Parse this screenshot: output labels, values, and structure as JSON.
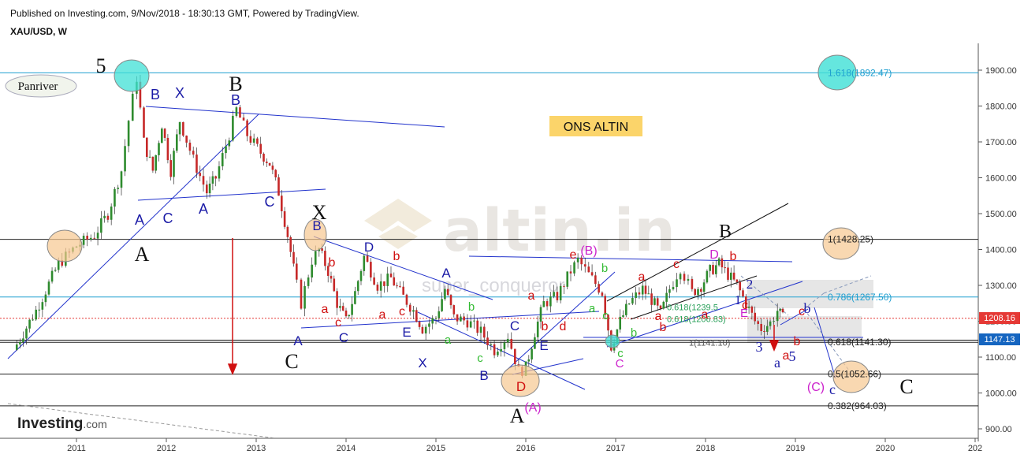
{
  "header": {
    "published": "Published on Investing.com, 9/Nov/2018 - 18:30:13 GMT, Powered by TradingView.",
    "symbol": "XAU/USD, W"
  },
  "badges": {
    "author": "Panriver",
    "title": "ONS ALTIN",
    "watermark_site": "altin.in",
    "watermark_user": "super_conqueror",
    "brand": "Investing",
    "brand_suffix": ".com"
  },
  "colors": {
    "candle_up": "#2e8b2e",
    "candle_down": "#c62828",
    "trendline": "#2233cc",
    "wave_blue": "#1a1aa6",
    "wave_red": "#d01010",
    "wave_green": "#33bb33",
    "wave_magenta": "#cc22cc",
    "price_tag_red": "#e53935",
    "price_tag_blue": "#1565c0",
    "orange_fill": "#f6c890",
    "cyan_fill": "#3fe0d6"
  },
  "chart_data": {
    "type": "candlestick",
    "title": "XAU/USD, W",
    "x_tick_labels": [
      "2011",
      "2012",
      "2013",
      "2014",
      "2015",
      "2016",
      "2017",
      "2018",
      "2019",
      "2020",
      "202"
    ],
    "y_tick_labels": [
      "900.00",
      "1000.00",
      "1100.00",
      "1200.00",
      "1300.00",
      "1400.00",
      "1500.00",
      "1600.00",
      "1700.00",
      "1800.00",
      "1900.00"
    ],
    "ylim": [
      870,
      1970
    ],
    "current_price": "1208.16",
    "marked_price": "1147.13",
    "fib_levels": [
      {
        "label": "1.618(1892.47)",
        "value": 1892.47,
        "color": "#1f9fd0"
      },
      {
        "label": "1(1428.25)",
        "value": 1428.25,
        "color": "#222222"
      },
      {
        "label": "0.786(1267.50)",
        "value": 1267.5,
        "color": "#1f9fd0"
      },
      {
        "label": "0.618(1141.30)",
        "value": 1141.3,
        "color": "#222222"
      },
      {
        "label": "0.5(1052.66)",
        "value": 1052.66,
        "color": "#222222"
      },
      {
        "label": "0.382(964.03)",
        "value": 964.03,
        "color": "#222222"
      }
    ],
    "inner_fib_labels": [
      {
        "label": "0.618(1239.5",
        "value": 1239.5
      },
      {
        "label": "0.618(1206.83)",
        "value": 1206.83
      },
      {
        "label": "1(1141.10)",
        "value": 1141.1
      }
    ],
    "price_path": [
      [
        2010.3,
        1120
      ],
      [
        2010.55,
        1230
      ],
      [
        2010.8,
        1360
      ],
      [
        2011.0,
        1410
      ],
      [
        2011.2,
        1440
      ],
      [
        2011.35,
        1500
      ],
      [
        2011.5,
        1620
      ],
      [
        2011.58,
        1760
      ],
      [
        2011.67,
        1880
      ],
      [
        2011.75,
        1700
      ],
      [
        2011.85,
        1620
      ],
      [
        2011.95,
        1750
      ],
      [
        2012.05,
        1620
      ],
      [
        2012.15,
        1760
      ],
      [
        2012.3,
        1650
      ],
      [
        2012.45,
        1560
      ],
      [
        2012.55,
        1600
      ],
      [
        2012.7,
        1720
      ],
      [
        2012.78,
        1790
      ],
      [
        2012.9,
        1720
      ],
      [
        2013.05,
        1670
      ],
      [
        2013.15,
        1640
      ],
      [
        2013.25,
        1560
      ],
      [
        2013.35,
        1440
      ],
      [
        2013.45,
        1300
      ],
      [
        2013.5,
        1250
      ],
      [
        2013.62,
        1370
      ],
      [
        2013.7,
        1400
      ],
      [
        2013.8,
        1340
      ],
      [
        2013.9,
        1250
      ],
      [
        2014.0,
        1200
      ],
      [
        2014.1,
        1280
      ],
      [
        2014.2,
        1380
      ],
      [
        2014.35,
        1300
      ],
      [
        2014.5,
        1320
      ],
      [
        2014.6,
        1280
      ],
      [
        2014.75,
        1230
      ],
      [
        2014.85,
        1180
      ],
      [
        2015.0,
        1210
      ],
      [
        2015.1,
        1290
      ],
      [
        2015.2,
        1210
      ],
      [
        2015.35,
        1200
      ],
      [
        2015.5,
        1170
      ],
      [
        2015.65,
        1120
      ],
      [
        2015.8,
        1160
      ],
      [
        2015.92,
        1060
      ],
      [
        2016.0,
        1070
      ],
      [
        2016.1,
        1170
      ],
      [
        2016.2,
        1250
      ],
      [
        2016.35,
        1270
      ],
      [
        2016.5,
        1340
      ],
      [
        2016.58,
        1370
      ],
      [
        2016.7,
        1330
      ],
      [
        2016.85,
        1280
      ],
      [
        2016.95,
        1130
      ],
      [
        2017.05,
        1200
      ],
      [
        2017.15,
        1250
      ],
      [
        2017.3,
        1290
      ],
      [
        2017.4,
        1260
      ],
      [
        2017.5,
        1220
      ],
      [
        2017.6,
        1290
      ],
      [
        2017.72,
        1350
      ],
      [
        2017.85,
        1280
      ],
      [
        2017.95,
        1300
      ],
      [
        2018.05,
        1340
      ],
      [
        2018.15,
        1360
      ],
      [
        2018.25,
        1330
      ],
      [
        2018.35,
        1300
      ],
      [
        2018.45,
        1250
      ],
      [
        2018.55,
        1200
      ],
      [
        2018.62,
        1180
      ],
      [
        2018.72,
        1195
      ],
      [
        2018.8,
        1230
      ],
      [
        2018.86,
        1208
      ]
    ]
  },
  "wave_labels": [
    {
      "t": "5",
      "x": 128,
      "y": 92,
      "c": "#111",
      "s": 26,
      "serif": true
    },
    {
      "t": "B",
      "x": 299,
      "y": 115,
      "c": "#111",
      "s": 26,
      "serif": true
    },
    {
      "t": "X",
      "x": 405,
      "y": 278,
      "c": "#111",
      "s": 26,
      "serif": true
    },
    {
      "t": "A",
      "x": 180,
      "y": 331,
      "c": "#111",
      "s": 26,
      "serif": true
    },
    {
      "t": "C",
      "x": 370,
      "y": 467,
      "c": "#111",
      "s": 26,
      "serif": true
    },
    {
      "t": "B",
      "x": 920,
      "y": 301,
      "c": "#111",
      "s": 24,
      "serif": true
    },
    {
      "t": "A",
      "x": 656,
      "y": 536,
      "c": "#111",
      "s": 26,
      "serif": true
    },
    {
      "t": "C",
      "x": 1150,
      "y": 499,
      "c": "#111",
      "s": 26,
      "serif": true
    },
    {
      "t": "B",
      "x": 197,
      "y": 126,
      "c": "#1a1aa6",
      "s": 18
    },
    {
      "t": "X",
      "x": 228,
      "y": 124,
      "c": "#1a1aa6",
      "s": 18
    },
    {
      "t": "B",
      "x": 299,
      "y": 133,
      "c": "#1a1aa6",
      "s": 18
    },
    {
      "t": "A",
      "x": 177,
      "y": 285,
      "c": "#1a1aa6",
      "s": 18
    },
    {
      "t": "C",
      "x": 213,
      "y": 283,
      "c": "#1a1aa6",
      "s": 18
    },
    {
      "t": "A",
      "x": 258,
      "y": 271,
      "c": "#1a1aa6",
      "s": 18
    },
    {
      "t": "C",
      "x": 342,
      "y": 262,
      "c": "#1a1aa6",
      "s": 18
    },
    {
      "t": "B",
      "x": 402,
      "y": 292,
      "c": "#1a1aa6",
      "s": 17
    },
    {
      "t": "A",
      "x": 378,
      "y": 438,
      "c": "#1a1aa6",
      "s": 17
    },
    {
      "t": "C",
      "x": 436,
      "y": 434,
      "c": "#1a1aa6",
      "s": 17
    },
    {
      "t": "D",
      "x": 468,
      "y": 319,
      "c": "#1a1aa6",
      "s": 17
    },
    {
      "t": "E",
      "x": 516,
      "y": 427,
      "c": "#1a1aa6",
      "s": 17
    },
    {
      "t": "X",
      "x": 536,
      "y": 466,
      "c": "#1a1aa6",
      "s": 17
    },
    {
      "t": "A",
      "x": 566,
      "y": 352,
      "c": "#1a1aa6",
      "s": 17
    },
    {
      "t": "B",
      "x": 614,
      "y": 482,
      "c": "#1a1aa6",
      "s": 17
    },
    {
      "t": "C",
      "x": 653,
      "y": 419,
      "c": "#1a1aa6",
      "s": 17
    },
    {
      "t": "E",
      "x": 690,
      "y": 444,
      "c": "#1a1aa6",
      "s": 17
    },
    {
      "t": "D",
      "x": 661,
      "y": 496,
      "c": "#d01010",
      "s": 17
    },
    {
      "t": "c",
      "x": 1056,
      "y": 500,
      "c": "#1a1aa6",
      "s": 18,
      "serif": true
    },
    {
      "t": "a",
      "x": 986,
      "y": 466,
      "c": "#1a1aa6",
      "s": 18,
      "serif": true
    },
    {
      "t": "b",
      "x": 1024,
      "y": 397,
      "c": "#1a1aa6",
      "s": 18,
      "serif": true
    },
    {
      "t": "3",
      "x": 963,
      "y": 446,
      "c": "#1a1aa6",
      "s": 18,
      "serif": true
    },
    {
      "t": "5",
      "x": 1005,
      "y": 458,
      "c": "#1a1aa6",
      "s": 18,
      "serif": true
    },
    {
      "t": "1",
      "x": 936,
      "y": 386,
      "c": "#1a1aa6",
      "s": 17,
      "serif": true
    },
    {
      "t": "2",
      "x": 951,
      "y": 366,
      "c": "#1a1aa6",
      "s": 17,
      "serif": true
    },
    {
      "t": "b",
      "x": 421,
      "y": 338,
      "c": "#d01010",
      "s": 16
    },
    {
      "t": "a",
      "x": 412,
      "y": 397,
      "c": "#d01010",
      "s": 16
    },
    {
      "t": "c",
      "x": 429,
      "y": 414,
      "c": "#d01010",
      "s": 16
    },
    {
      "t": "b",
      "x": 503,
      "y": 330,
      "c": "#d01010",
      "s": 16
    },
    {
      "t": "a",
      "x": 485,
      "y": 404,
      "c": "#d01010",
      "s": 16
    },
    {
      "t": "c",
      "x": 510,
      "y": 400,
      "c": "#d01010",
      "s": 16
    },
    {
      "t": "d",
      "x": 714,
      "y": 419,
      "c": "#d01010",
      "s": 16
    },
    {
      "t": "b",
      "x": 691,
      "y": 419,
      "c": "#d01010",
      "s": 16
    },
    {
      "t": "a",
      "x": 674,
      "y": 380,
      "c": "#d01010",
      "s": 16
    },
    {
      "t": "e",
      "x": 727,
      "y": 328,
      "c": "#d01010",
      "s": 16
    },
    {
      "t": "a",
      "x": 814,
      "y": 356,
      "c": "#d01010",
      "s": 16
    },
    {
      "t": "a",
      "x": 835,
      "y": 406,
      "c": "#d01010",
      "s": 16
    },
    {
      "t": "b",
      "x": 841,
      "y": 420,
      "c": "#d01010",
      "s": 16
    },
    {
      "t": "c",
      "x": 858,
      "y": 340,
      "c": "#d01010",
      "s": 16
    },
    {
      "t": "a",
      "x": 894,
      "y": 404,
      "c": "#d01010",
      "s": 16
    },
    {
      "t": "b",
      "x": 930,
      "y": 330,
      "c": "#d01010",
      "s": 16
    },
    {
      "t": "c",
      "x": 945,
      "y": 392,
      "c": "#d01010",
      "s": 16
    },
    {
      "t": "a",
      "x": 997,
      "y": 456,
      "c": "#d01010",
      "s": 16
    },
    {
      "t": "b",
      "x": 1011,
      "y": 438,
      "c": "#d01010",
      "s": 16
    },
    {
      "t": "c",
      "x": 1017,
      "y": 400,
      "c": "#d01010",
      "s": 16
    },
    {
      "t": "b",
      "x": 598,
      "y": 394,
      "c": "#33bb33",
      "s": 15
    },
    {
      "t": "a",
      "x": 568,
      "y": 436,
      "c": "#33bb33",
      "s": 15
    },
    {
      "t": "c",
      "x": 609,
      "y": 459,
      "c": "#33bb33",
      "s": 15
    },
    {
      "t": "b",
      "x": 767,
      "y": 345,
      "c": "#33bb33",
      "s": 15
    },
    {
      "t": "a",
      "x": 751,
      "y": 396,
      "c": "#33bb33",
      "s": 15
    },
    {
      "t": "c",
      "x": 768,
      "y": 405,
      "c": "#33bb33",
      "s": 15
    },
    {
      "t": "b",
      "x": 804,
      "y": 427,
      "c": "#33bb33",
      "s": 15
    },
    {
      "t": "c",
      "x": 787,
      "y": 453,
      "c": "#33bb33",
      "s": 15
    },
    {
      "t": "(B)",
      "x": 747,
      "y": 323,
      "c": "#cc22cc",
      "s": 16
    },
    {
      "t": "(A)",
      "x": 676,
      "y": 522,
      "c": "#cc22cc",
      "s": 16
    },
    {
      "t": "(C)",
      "x": 1035,
      "y": 496,
      "c": "#cc22cc",
      "s": 16
    },
    {
      "t": "D",
      "x": 906,
      "y": 328,
      "c": "#cc22cc",
      "s": 16
    },
    {
      "t": "E",
      "x": 944,
      "y": 402,
      "c": "#cc22cc",
      "s": 15
    },
    {
      "t": "C",
      "x": 786,
      "y": 466,
      "c": "#cc22cc",
      "s": 15
    }
  ]
}
